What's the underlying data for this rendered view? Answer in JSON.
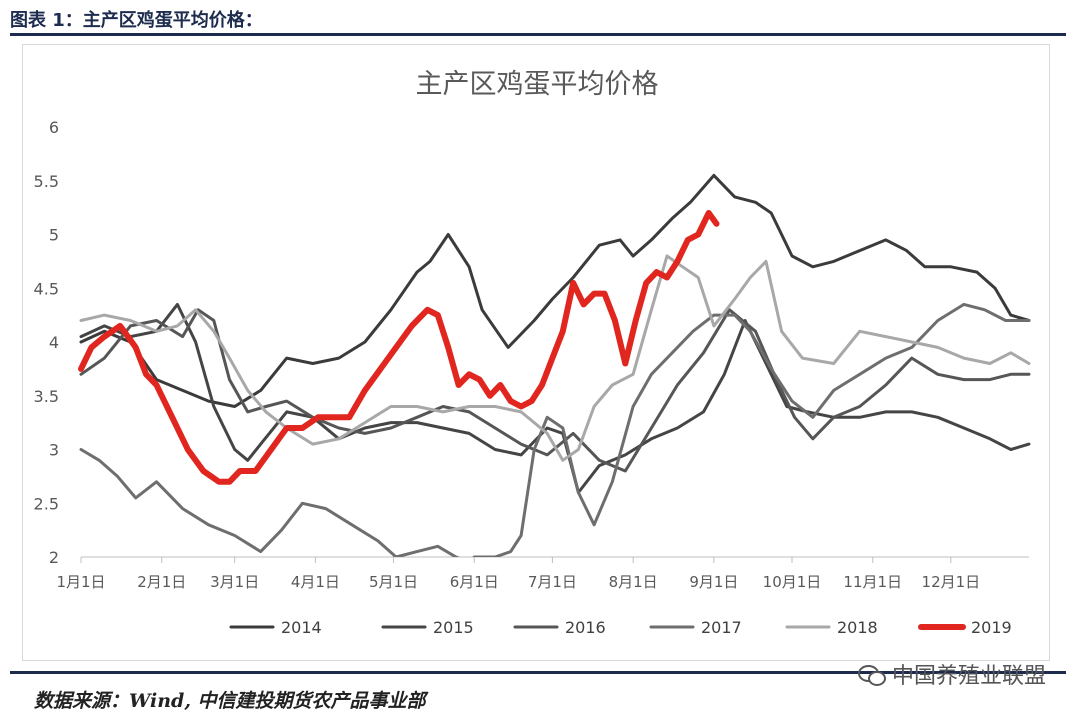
{
  "caption": "图表 1：主产区鸡蛋平均价格：",
  "source": "数据来源：Wind, 中信建投期货农产品事业部",
  "watermark": "中国养殖业联盟",
  "icons": {
    "watermark_icon": "wechat-icon"
  },
  "chart_data": {
    "type": "line",
    "title": "主产区鸡蛋平均价格",
    "xlabel": "",
    "ylabel": "",
    "ylim": [
      2,
      6
    ],
    "yticks": [
      "2",
      "2.5",
      "3",
      "3.5",
      "4",
      "4.5",
      "5",
      "5.5",
      "6"
    ],
    "xlim": [
      1,
      365
    ],
    "xticks": [
      {
        "label": "1月1日",
        "day": 1
      },
      {
        "label": "2月1日",
        "day": 32
      },
      {
        "label": "3月1日",
        "day": 60
      },
      {
        "label": "4月1日",
        "day": 91
      },
      {
        "label": "5月1日",
        "day": 121
      },
      {
        "label": "6月1日",
        "day": 152
      },
      {
        "label": "7月1日",
        "day": 182
      },
      {
        "label": "8月1日",
        "day": 213
      },
      {
        "label": "9月1日",
        "day": 244
      },
      {
        "label": "10月1日",
        "day": 274
      },
      {
        "label": "11月1日",
        "day": 305
      },
      {
        "label": "12月1日",
        "day": 335
      }
    ],
    "grid": false,
    "legend": "bottom",
    "series": [
      {
        "name": "2014",
        "color": "#3b3b3b",
        "width": 3,
        "x": [
          1,
          10,
          20,
          30,
          40,
          50,
          60,
          70,
          80,
          90,
          100,
          110,
          120,
          130,
          135,
          142,
          150,
          155,
          165,
          175,
          182,
          190,
          200,
          208,
          213,
          220,
          228,
          235,
          244,
          252,
          260,
          266,
          274,
          282,
          290,
          300,
          310,
          318,
          325,
          335,
          345,
          352,
          358,
          365
        ],
        "y": [
          4.0,
          4.1,
          4.0,
          3.65,
          3.55,
          3.45,
          3.4,
          3.55,
          3.85,
          3.8,
          3.85,
          4.0,
          4.3,
          4.65,
          4.75,
          5.0,
          4.7,
          4.3,
          3.95,
          4.2,
          4.4,
          4.6,
          4.9,
          4.95,
          4.8,
          4.95,
          5.15,
          5.3,
          5.55,
          5.35,
          5.3,
          5.2,
          4.8,
          4.7,
          4.75,
          4.85,
          4.95,
          4.85,
          4.7,
          4.7,
          4.65,
          4.5,
          4.25,
          4.2
        ]
      },
      {
        "name": "2015",
        "color": "#454545",
        "width": 3,
        "x": [
          1,
          10,
          20,
          30,
          38,
          45,
          52,
          60,
          65,
          70,
          80,
          90,
          100,
          110,
          120,
          130,
          140,
          150,
          160,
          170,
          180,
          186,
          192,
          200,
          210,
          220,
          230,
          240,
          248,
          256,
          264,
          272,
          280,
          290,
          300,
          310,
          320,
          330,
          340,
          350,
          358,
          365
        ],
        "y": [
          4.05,
          4.15,
          4.05,
          4.1,
          4.35,
          4.0,
          3.4,
          3.0,
          2.9,
          3.05,
          3.35,
          3.3,
          3.1,
          3.2,
          3.25,
          3.25,
          3.2,
          3.15,
          3.0,
          2.95,
          3.2,
          3.15,
          2.6,
          2.85,
          2.95,
          3.1,
          3.2,
          3.35,
          3.7,
          4.2,
          3.8,
          3.4,
          3.35,
          3.3,
          3.3,
          3.35,
          3.35,
          3.3,
          3.2,
          3.1,
          3.0,
          3.05
        ]
      },
      {
        "name": "2016",
        "color": "#565656",
        "width": 3,
        "x": [
          1,
          10,
          20,
          30,
          40,
          46,
          52,
          58,
          65,
          72,
          80,
          90,
          100,
          110,
          120,
          130,
          140,
          150,
          160,
          170,
          180,
          190,
          200,
          210,
          220,
          230,
          240,
          250,
          260,
          268,
          275,
          282,
          290,
          300,
          310,
          320,
          330,
          340,
          350,
          358,
          365
        ],
        "y": [
          3.7,
          3.85,
          4.15,
          4.2,
          4.05,
          4.3,
          4.2,
          3.65,
          3.35,
          3.4,
          3.45,
          3.3,
          3.2,
          3.15,
          3.2,
          3.3,
          3.4,
          3.35,
          3.2,
          3.05,
          2.95,
          3.15,
          2.9,
          2.8,
          3.2,
          3.6,
          3.9,
          4.3,
          4.1,
          3.65,
          3.3,
          3.1,
          3.3,
          3.4,
          3.6,
          3.85,
          3.7,
          3.65,
          3.65,
          3.7,
          3.7
        ]
      },
      {
        "name": "2017",
        "color": "#6e6e6e",
        "width": 3,
        "x": [
          1,
          8,
          15,
          22,
          30,
          40,
          50,
          60,
          70,
          78,
          86,
          95,
          105,
          115,
          122,
          130,
          138,
          145,
          150,
          152,
          160,
          166,
          170,
          175,
          180,
          186,
          192,
          198,
          205,
          213,
          220,
          228,
          236,
          244,
          252,
          258,
          266,
          274,
          282,
          290,
          300,
          310,
          320,
          330,
          340,
          348,
          356,
          365
        ],
        "y": [
          3.0,
          2.9,
          2.75,
          2.55,
          2.7,
          2.45,
          2.3,
          2.2,
          2.05,
          2.25,
          2.5,
          2.45,
          2.3,
          2.15,
          2.0,
          2.05,
          2.1,
          2.0,
          1.95,
          2.0,
          2.0,
          2.05,
          2.2,
          3.0,
          3.3,
          3.2,
          2.6,
          2.3,
          2.7,
          3.4,
          3.7,
          3.9,
          4.1,
          4.25,
          4.25,
          4.1,
          3.75,
          3.45,
          3.3,
          3.55,
          3.7,
          3.85,
          3.95,
          4.2,
          4.35,
          4.3,
          4.2,
          4.2
        ]
      },
      {
        "name": "2018",
        "color": "#a8a8a8",
        "width": 3,
        "x": [
          1,
          10,
          20,
          30,
          38,
          45,
          52,
          58,
          65,
          72,
          80,
          90,
          100,
          110,
          120,
          130,
          140,
          150,
          160,
          170,
          180,
          186,
          192,
          198,
          205,
          213,
          220,
          226,
          232,
          238,
          244,
          252,
          258,
          264,
          270,
          278,
          290,
          300,
          310,
          320,
          330,
          340,
          350,
          358,
          365
        ],
        "y": [
          4.2,
          4.25,
          4.2,
          4.1,
          4.15,
          4.3,
          4.1,
          3.85,
          3.55,
          3.35,
          3.2,
          3.05,
          3.1,
          3.25,
          3.4,
          3.4,
          3.35,
          3.4,
          3.4,
          3.35,
          3.15,
          2.9,
          3.0,
          3.4,
          3.6,
          3.7,
          4.3,
          4.8,
          4.7,
          4.6,
          4.15,
          4.4,
          4.6,
          4.75,
          4.1,
          3.85,
          3.8,
          4.1,
          4.05,
          4.0,
          3.95,
          3.85,
          3.8,
          3.9,
          3.8
        ]
      },
      {
        "name": "2019",
        "color": "#e0261f",
        "width": 6,
        "x": [
          1,
          5,
          10,
          16,
          22,
          26,
          30,
          36,
          42,
          48,
          54,
          58,
          62,
          68,
          74,
          80,
          86,
          92,
          98,
          104,
          110,
          116,
          122,
          128,
          134,
          138,
          142,
          146,
          150,
          154,
          158,
          162,
          166,
          170,
          174,
          178,
          182,
          186,
          190,
          194,
          198,
          202,
          206,
          210,
          214,
          218,
          222,
          226,
          230,
          234,
          238,
          242,
          245
        ],
        "y": [
          3.75,
          3.95,
          4.05,
          4.15,
          3.95,
          3.7,
          3.6,
          3.3,
          3.0,
          2.8,
          2.7,
          2.7,
          2.8,
          2.8,
          3.0,
          3.2,
          3.2,
          3.3,
          3.3,
          3.3,
          3.55,
          3.75,
          3.95,
          4.15,
          4.3,
          4.25,
          3.95,
          3.6,
          3.7,
          3.65,
          3.5,
          3.6,
          3.45,
          3.4,
          3.45,
          3.6,
          3.85,
          4.1,
          4.55,
          4.35,
          4.45,
          4.45,
          4.2,
          3.8,
          4.2,
          4.55,
          4.65,
          4.6,
          4.75,
          4.95,
          5.0,
          5.2,
          5.1
        ]
      }
    ]
  }
}
